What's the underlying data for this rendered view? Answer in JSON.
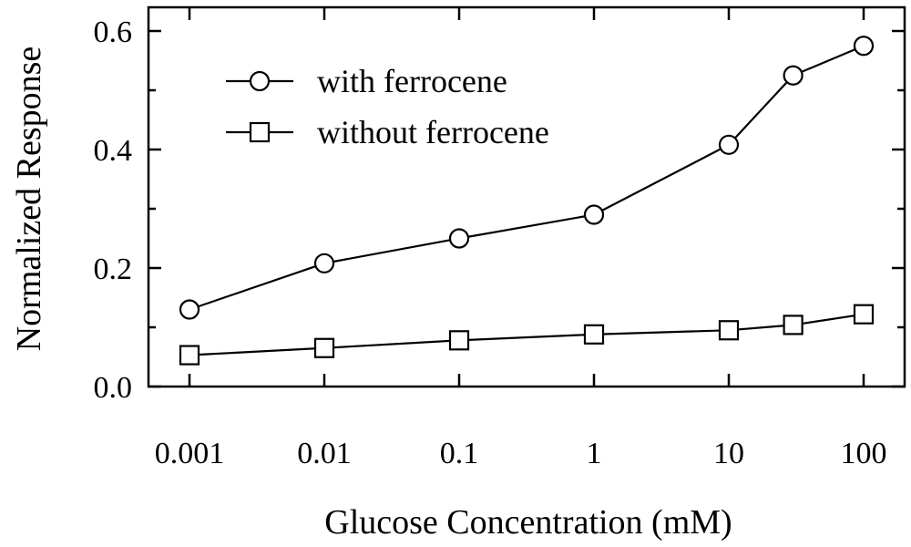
{
  "chart_data": {
    "type": "line",
    "xscale": "log",
    "x_ticks": [
      0.001,
      0.01,
      0.1,
      1,
      10,
      100
    ],
    "x_tick_labels": [
      "0.001",
      "0.01",
      "0.1",
      "1",
      "10",
      "100"
    ],
    "y_ticks": [
      0.0,
      0.2,
      0.4,
      0.6
    ],
    "y_tick_labels": [
      "0.0",
      "0.2",
      "0.4",
      "0.6"
    ],
    "xlim": [
      0.001,
      100
    ],
    "ylim": [
      0.0,
      0.6
    ],
    "xlabel": "Glucose Concentration (mM)",
    "ylabel": "Normalized Response",
    "grid": false,
    "legend_position": "top-left",
    "series": [
      {
        "name": "with ferrocene",
        "marker": "circle",
        "x": [
          0.001,
          0.01,
          0.1,
          1,
          10,
          30,
          100
        ],
        "y": [
          0.13,
          0.208,
          0.25,
          0.29,
          0.408,
          0.525,
          0.575
        ]
      },
      {
        "name": "without ferrocene",
        "marker": "square",
        "x": [
          0.001,
          0.01,
          0.1,
          1,
          10,
          30,
          100
        ],
        "y": [
          0.053,
          0.065,
          0.078,
          0.088,
          0.095,
          0.104,
          0.122
        ]
      }
    ]
  }
}
